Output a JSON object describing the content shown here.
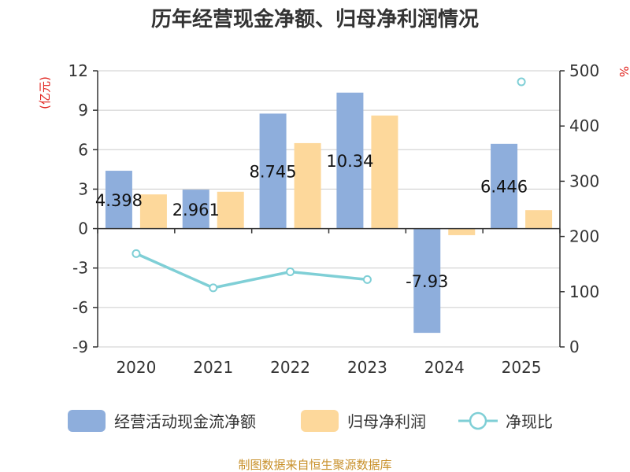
{
  "chart_data": {
    "type": "bar",
    "title": "历年经营现金净额、归母净利润情况",
    "categories": [
      "2020",
      "2021",
      "2022",
      "2023",
      "2024",
      "2025"
    ],
    "series": [
      {
        "name": "经营活动现金流净额",
        "type": "bar",
        "axis": "left",
        "color": "#8eaedc",
        "values": [
          4.398,
          2.961,
          8.745,
          10.34,
          -7.93,
          6.446
        ],
        "labels": [
          "4.398",
          "2.961",
          "8.745",
          "10.34",
          "-7.93",
          "6.446"
        ]
      },
      {
        "name": "归母净利润",
        "type": "bar",
        "axis": "left",
        "color": "#fdd89b",
        "values": [
          2.6,
          2.8,
          6.5,
          8.6,
          -0.5,
          1.4
        ]
      },
      {
        "name": "净现比",
        "type": "line",
        "axis": "right",
        "color": "#7fcfd6",
        "values": [
          169,
          107,
          136,
          122,
          null,
          480
        ]
      }
    ],
    "left_axis": {
      "unit": "(亿元)",
      "min": -9,
      "max": 12,
      "step": 3
    },
    "right_axis": {
      "unit": "%",
      "min": 0,
      "max": 500,
      "step": 100
    },
    "legend_position": "bottom",
    "source": "制图数据来自恒生聚源数据库"
  }
}
